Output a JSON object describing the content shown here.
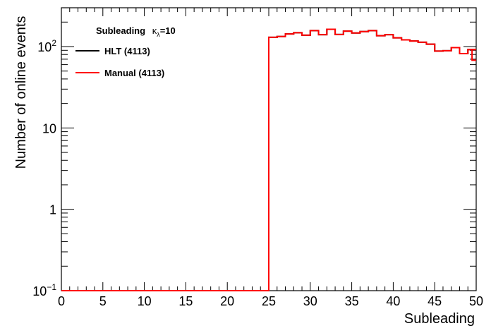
{
  "chart_data": {
    "type": "line",
    "title": "Subleading",
    "title_suffix": "=10",
    "kappa_symbol": "κ",
    "kappa_subscript": "λ",
    "xlabel": "Subleading",
    "ylabel": "Number of online events",
    "xlim": [
      0,
      50
    ],
    "ylim": [
      0.1,
      300
    ],
    "y_scale": "log",
    "grid": false,
    "legend_position": "top-left",
    "x_ticks": [
      "0",
      "5",
      "10",
      "15",
      "20",
      "25",
      "30",
      "35",
      "40",
      "45",
      "50"
    ],
    "y_ticks": [
      {
        "value": 0.1,
        "base": "10",
        "exp": "−1"
      },
      {
        "value": 1,
        "label": "1"
      },
      {
        "value": 10,
        "label": "10"
      },
      {
        "value": 100,
        "base": "10",
        "exp": "2"
      }
    ],
    "bin_edges": [
      0,
      1,
      2,
      3,
      4,
      5,
      6,
      7,
      8,
      9,
      10,
      11,
      12,
      13,
      14,
      15,
      16,
      17,
      18,
      19,
      20,
      21,
      22,
      23,
      24,
      25,
      26,
      27,
      28,
      29,
      30,
      31,
      32,
      33,
      34,
      35,
      36,
      37,
      38,
      39,
      40,
      41,
      42,
      43,
      44,
      45,
      46,
      47,
      48,
      49,
      50
    ],
    "series": [
      {
        "name": "HLT (4113)",
        "color": "#000000",
        "values": [
          0.1,
          0.1,
          0.1,
          0.1,
          0.1,
          0.1,
          0.1,
          0.1,
          0.1,
          0.1,
          0.1,
          0.1,
          0.1,
          0.1,
          0.1,
          0.1,
          0.1,
          0.1,
          0.1,
          0.1,
          0.1,
          0.1,
          0.1,
          0.1,
          0.1,
          130,
          133,
          143,
          148,
          138,
          157,
          140,
          163,
          141,
          155,
          147,
          153,
          157,
          136,
          140,
          128,
          121,
          117,
          113,
          107,
          88,
          89,
          97,
          82,
          92
        ]
      },
      {
        "name": "Manual (4113)",
        "color": "#ff0000",
        "values": [
          0.1,
          0.1,
          0.1,
          0.1,
          0.1,
          0.1,
          0.1,
          0.1,
          0.1,
          0.1,
          0.1,
          0.1,
          0.1,
          0.1,
          0.1,
          0.1,
          0.1,
          0.1,
          0.1,
          0.1,
          0.1,
          0.1,
          0.1,
          0.1,
          0.1,
          130,
          133,
          143,
          148,
          138,
          157,
          140,
          163,
          141,
          155,
          147,
          153,
          157,
          136,
          140,
          128,
          121,
          117,
          113,
          107,
          88,
          89,
          97,
          82,
          92
        ],
        "last_bin_partial": 68
      }
    ]
  }
}
